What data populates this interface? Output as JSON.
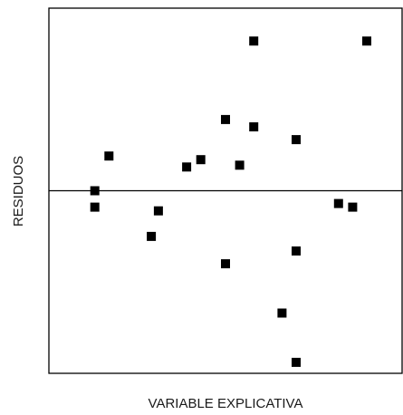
{
  "chart_data": {
    "type": "scatter",
    "title": "",
    "xlabel": "VARIABLE EXPLICATIVA",
    "ylabel": "RESIDUOS",
    "xlim": [
      0,
      100
    ],
    "ylim": [
      -100,
      100
    ],
    "grid": false,
    "zero_line": 0,
    "point_color": "#000000",
    "points": [
      {
        "x": 13,
        "y": 0
      },
      {
        "x": 13,
        "y": -9
      },
      {
        "x": 17,
        "y": 19
      },
      {
        "x": 29,
        "y": -25
      },
      {
        "x": 31,
        "y": -11
      },
      {
        "x": 39,
        "y": 13
      },
      {
        "x": 43,
        "y": 17
      },
      {
        "x": 50,
        "y": 39
      },
      {
        "x": 50,
        "y": -40
      },
      {
        "x": 54,
        "y": 14
      },
      {
        "x": 58,
        "y": 82
      },
      {
        "x": 58,
        "y": 35
      },
      {
        "x": 66,
        "y": -67
      },
      {
        "x": 70,
        "y": 28
      },
      {
        "x": 70,
        "y": -33
      },
      {
        "x": 70,
        "y": -94
      },
      {
        "x": 82,
        "y": -7
      },
      {
        "x": 86,
        "y": -9
      },
      {
        "x": 90,
        "y": 82
      }
    ]
  }
}
